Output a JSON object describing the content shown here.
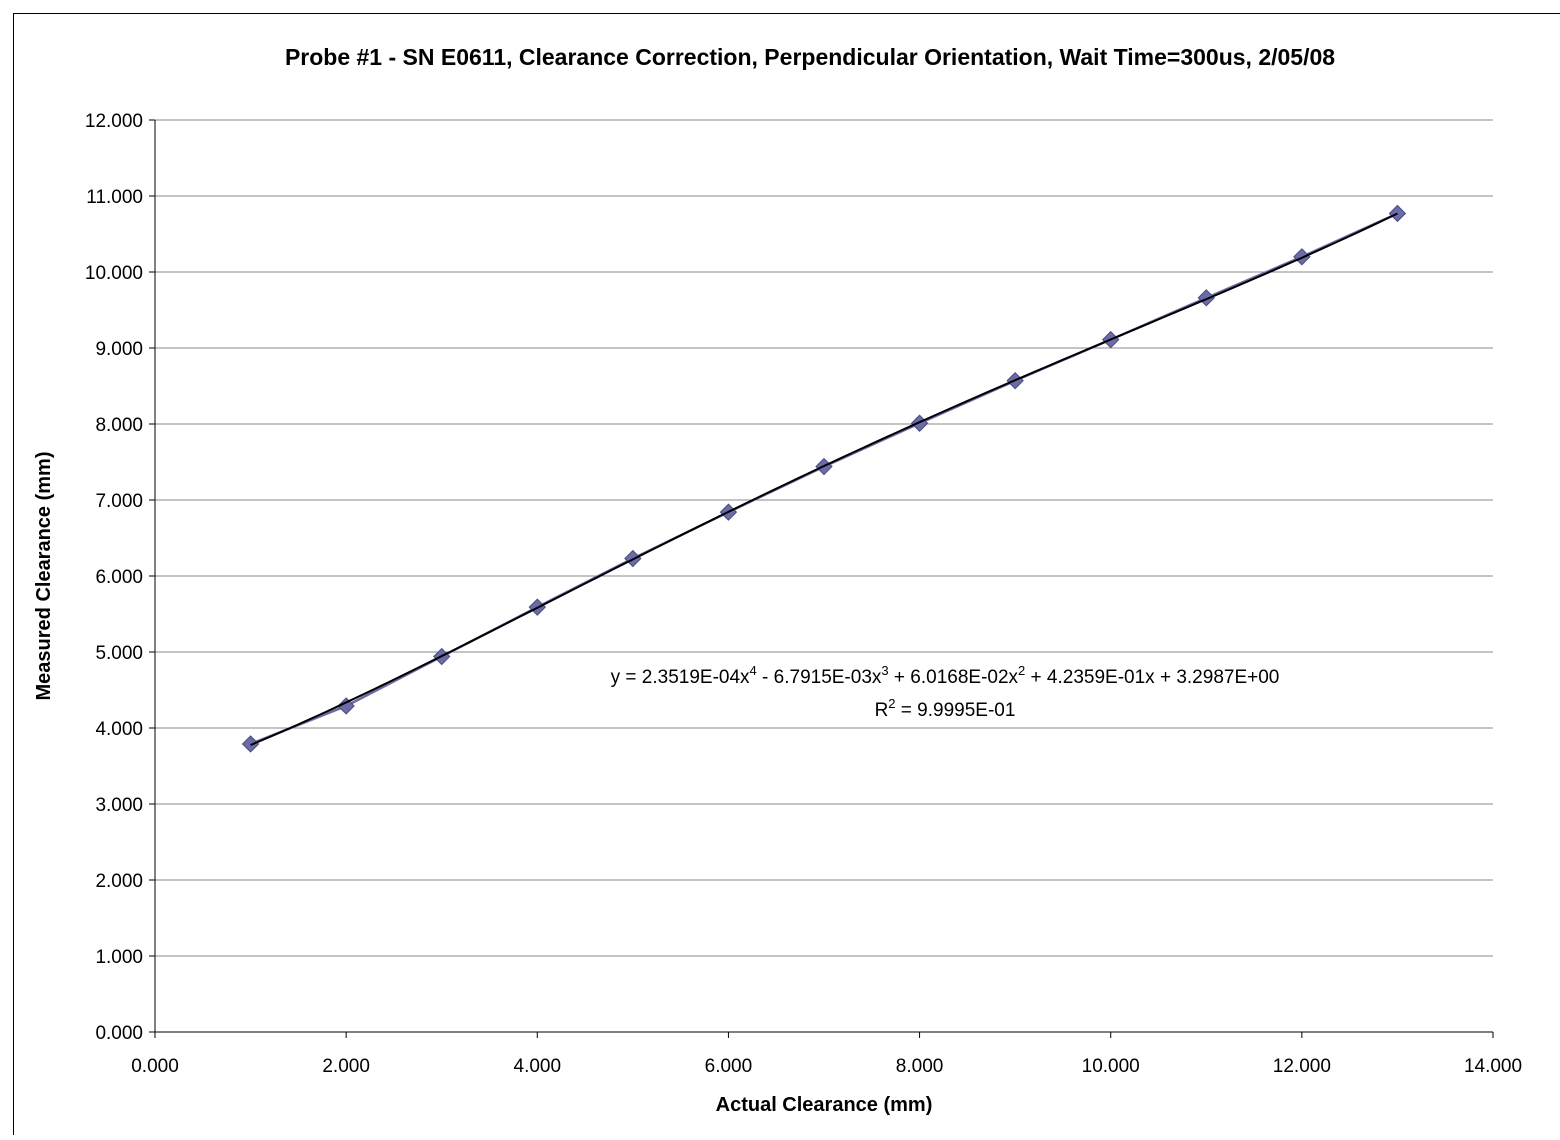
{
  "chart_data": {
    "type": "scatter",
    "title": "Probe #1 - SN E0611, Clearance Correction, Perpendicular Orientation, Wait Time=300us, 2/05/08",
    "xlabel": "Actual Clearance (mm)",
    "ylabel": "Measured Clearance (mm)",
    "xlim": [
      0,
      14
    ],
    "ylim": [
      0,
      12
    ],
    "x_ticks": [
      "0.000",
      "2.000",
      "4.000",
      "6.000",
      "8.000",
      "10.000",
      "12.000",
      "14.000"
    ],
    "y_ticks": [
      "0.000",
      "1.000",
      "2.000",
      "3.000",
      "4.000",
      "5.000",
      "6.000",
      "7.000",
      "8.000",
      "9.000",
      "10.000",
      "11.000",
      "12.000"
    ],
    "grid": "horizontal",
    "legend": "none",
    "series": [
      {
        "marker": "diamond",
        "color": "#6b6ba8",
        "x": [
          1,
          2,
          3,
          4,
          5,
          6,
          7,
          8,
          9,
          10,
          11,
          12,
          13
        ],
        "y": [
          3.79,
          4.29,
          4.94,
          5.59,
          6.23,
          6.84,
          7.44,
          8.01,
          8.57,
          9.11,
          9.66,
          10.2,
          10.77
        ]
      }
    ],
    "trendline": {
      "type": "polynomial",
      "order": 4,
      "color": "#000000",
      "coefficients": [
        0.00023519,
        -0.0067915,
        0.060168,
        0.42359,
        3.2987
      ],
      "x_range": [
        1,
        13
      ],
      "equation": {
        "prefix": "y = 2.3519E-04x",
        "exp1": "4",
        "mid1": " - 6.7915E-03x",
        "exp2": "3",
        "mid2": " + 6.0168E-02x",
        "exp3": "2",
        "suffix": " + 4.2359E-01x + 3.2987E+00"
      },
      "r_squared": {
        "prefix": "R",
        "exp": "2",
        "suffix": " = 9.9995E-01"
      }
    }
  }
}
